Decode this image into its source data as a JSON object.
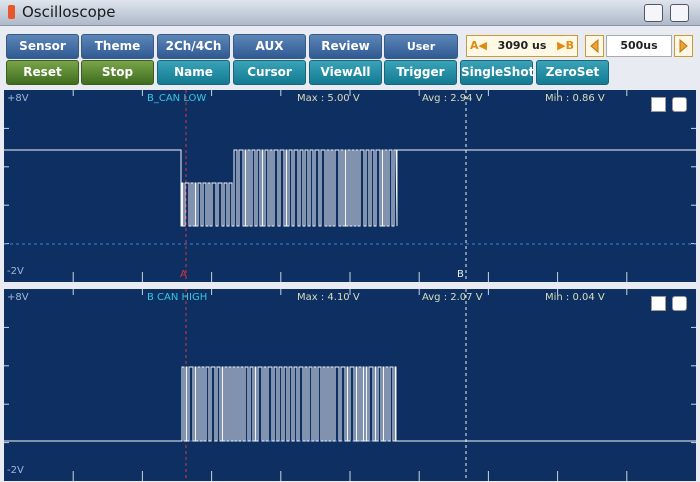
{
  "title": "Oscilloscope",
  "toolbar": {
    "row1": [
      "Sensor",
      "Theme",
      "2Ch/4Ch",
      "AUX",
      "Review",
      "User Setting"
    ],
    "cursor_a": "A◀",
    "cursor_time": "3090 us",
    "cursor_b": "▶B",
    "timebase": "500us",
    "row2": [
      "Reset",
      "Stop",
      "Name",
      "Cursor",
      "ViewAll",
      "Trigger",
      "SingleShot",
      "ZeroSet"
    ]
  },
  "channels": [
    {
      "top": "+8V",
      "name": "B_CAN LOW",
      "max": "Max : 5.00 V",
      "avg": "Avg : 2.94 V",
      "min": "Min : 0.86 V",
      "bottom": "-2V"
    },
    {
      "top": "+8V",
      "name": "B CAN HIGH",
      "max": "Max : 4.10 V",
      "avg": "Avg : 2.07 V",
      "min": "Min : 0.04 V",
      "bottom": "-2V"
    }
  ],
  "cursors": {
    "a": "A",
    "b": "B"
  }
}
